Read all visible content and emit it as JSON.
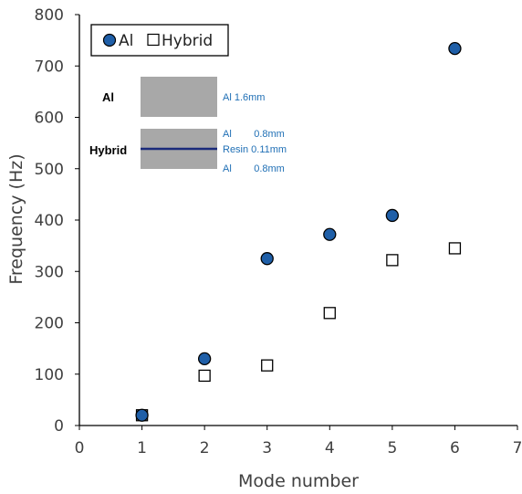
{
  "chart_data": {
    "type": "scatter",
    "xlabel": "Mode number",
    "ylabel": "Frequency (Hz)",
    "xlim": [
      0,
      7
    ],
    "ylim": [
      0,
      800
    ],
    "xticks": [
      0,
      1,
      2,
      3,
      4,
      5,
      6,
      7
    ],
    "yticks": [
      0,
      100,
      200,
      300,
      400,
      500,
      600,
      700,
      800
    ],
    "grid": false,
    "legend_position": "top-left",
    "series": [
      {
        "name": "Al",
        "marker": "circle",
        "color": "#1f5fa8",
        "x": [
          1,
          2,
          3,
          4,
          5,
          6
        ],
        "y": [
          20,
          130,
          325,
          372,
          409,
          734
        ]
      },
      {
        "name": "Hybrid",
        "marker": "square",
        "color": "#ffffff",
        "x": [
          1,
          2,
          3,
          4,
          5,
          6
        ],
        "y": [
          20,
          97,
          117,
          219,
          322,
          345
        ]
      }
    ],
    "inset": {
      "al_label": "Al",
      "al_layer": "Al 1.6mm",
      "hybrid_label": "Hybrid",
      "hybrid_layers": [
        "Al        0.8mm",
        "Resin 0.11mm",
        "Al        0.8mm"
      ],
      "fill_color": "#a8a8a8",
      "resin_color": "#1a2a7a",
      "label_color": "#1f6fb5"
    }
  }
}
